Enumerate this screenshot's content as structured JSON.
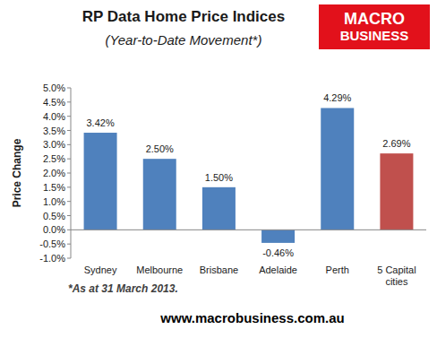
{
  "chart_data": {
    "type": "bar",
    "title": "RP Data Home Price Indices",
    "subtitle": "(Year-to-Date Movement*)",
    "y_label": "Price Change",
    "footnote": "*As at 31 March 2013.",
    "source": "www.macrobusiness.com.au",
    "logo_text": [
      "MACRO",
      "BUSINESS"
    ],
    "categories": [
      "Sydney",
      "Melbourne",
      "Brisbane",
      "Adelaide",
      "Perth",
      "5 Capital cities"
    ],
    "values": [
      3.42,
      2.5,
      1.5,
      -0.46,
      4.29,
      2.69
    ],
    "value_labels": [
      "3.42%",
      "2.50%",
      "1.50%",
      "-0.46%",
      "4.29%",
      "2.69%"
    ],
    "colors": [
      "#4f81bd",
      "#4f81bd",
      "#4f81bd",
      "#4f81bd",
      "#4f81bd",
      "#c0504d"
    ],
    "data_labels": true,
    "grid": false,
    "ylim": [
      -1,
      5
    ],
    "yticks": [
      {
        "value": -1,
        "label": "-1.0%"
      },
      {
        "value": -0.5,
        "label": "-0.5%"
      },
      {
        "value": 0,
        "label": "0.0%"
      },
      {
        "value": 0.5,
        "label": "0.5%"
      },
      {
        "value": 1,
        "label": "1.0%"
      },
      {
        "value": 1.5,
        "label": "1.5%"
      },
      {
        "value": 2,
        "label": "2.0%"
      },
      {
        "value": 2.5,
        "label": "2.5%"
      },
      {
        "value": 3,
        "label": "3.0%"
      },
      {
        "value": 3.5,
        "label": "3.5%"
      },
      {
        "value": 4,
        "label": "4.0%"
      },
      {
        "value": 4.5,
        "label": "4.5%"
      },
      {
        "value": 5,
        "label": "5.0%"
      }
    ]
  }
}
